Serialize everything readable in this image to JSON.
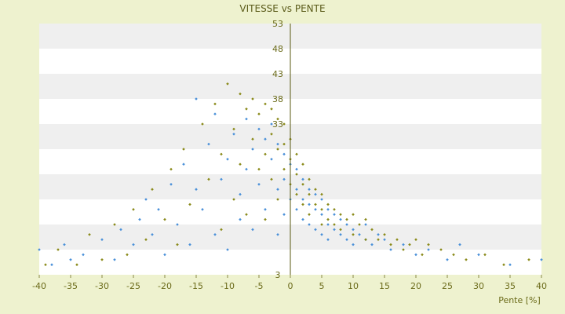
{
  "chart_data": {
    "type": "scatter",
    "title": "VITESSE vs PENTE",
    "xlabel": "Pente [%]",
    "ylabel": "",
    "xlim": [
      -40,
      40
    ],
    "ylim": [
      3,
      53
    ],
    "x_ticks": [
      -40,
      -35,
      -30,
      -25,
      -20,
      -15,
      -10,
      -5,
      0,
      5,
      10,
      15,
      20,
      25,
      30,
      35,
      40
    ],
    "y_ticks": [
      3,
      8,
      13,
      18,
      23,
      28,
      33,
      38,
      43,
      48,
      53
    ],
    "y_tick_labels": [
      "3",
      "",
      "",
      "",
      "",
      "",
      "33",
      "38",
      "43",
      "48",
      "53"
    ],
    "grid": "alternating horizontal bands",
    "background_colors": {
      "page": "#eef2cf",
      "band_white": "#ffffff",
      "band_grey": "#efefef"
    },
    "series": [
      {
        "color": "#4a90d9",
        "marker": "small diamond",
        "points": [
          [
            -40,
            8
          ],
          [
            -38,
            5
          ],
          [
            -36,
            9
          ],
          [
            -35,
            6
          ],
          [
            -33,
            7
          ],
          [
            -30,
            10
          ],
          [
            -28,
            6
          ],
          [
            -27,
            12
          ],
          [
            -25,
            9
          ],
          [
            -24,
            14
          ],
          [
            -23,
            18
          ],
          [
            -22,
            11
          ],
          [
            -21,
            16
          ],
          [
            -20,
            7
          ],
          [
            -19,
            21
          ],
          [
            -18,
            13
          ],
          [
            -17,
            25
          ],
          [
            -16,
            9
          ],
          [
            -15,
            38
          ],
          [
            -15,
            20
          ],
          [
            -14,
            16
          ],
          [
            -13,
            29
          ],
          [
            -12,
            11
          ],
          [
            -12,
            35
          ],
          [
            -11,
            22
          ],
          [
            -10,
            26
          ],
          [
            -10,
            8
          ],
          [
            -9,
            31
          ],
          [
            -8,
            19
          ],
          [
            -8,
            14
          ],
          [
            -7,
            34
          ],
          [
            -7,
            24
          ],
          [
            -6,
            28
          ],
          [
            -6,
            12
          ],
          [
            -5,
            32
          ],
          [
            -5,
            21
          ],
          [
            -4,
            30
          ],
          [
            -4,
            16
          ],
          [
            -3,
            33
          ],
          [
            -3,
            26
          ],
          [
            -2,
            29
          ],
          [
            -2,
            20
          ],
          [
            -2,
            11
          ],
          [
            -1,
            27
          ],
          [
            -1,
            22
          ],
          [
            -1,
            15
          ],
          [
            0,
            25
          ],
          [
            0,
            18
          ],
          [
            1,
            24
          ],
          [
            1,
            20
          ],
          [
            1,
            16
          ],
          [
            2,
            22
          ],
          [
            2,
            18
          ],
          [
            2,
            14
          ],
          [
            3,
            20
          ],
          [
            3,
            17
          ],
          [
            3,
            13
          ],
          [
            4,
            19
          ],
          [
            4,
            16
          ],
          [
            4,
            12
          ],
          [
            5,
            18
          ],
          [
            5,
            15
          ],
          [
            5,
            11
          ],
          [
            6,
            16
          ],
          [
            6,
            13
          ],
          [
            6,
            10
          ],
          [
            7,
            15
          ],
          [
            7,
            12
          ],
          [
            8,
            14
          ],
          [
            8,
            11
          ],
          [
            9,
            13
          ],
          [
            9,
            10
          ],
          [
            10,
            12
          ],
          [
            10,
            9
          ],
          [
            11,
            11
          ],
          [
            12,
            10
          ],
          [
            12,
            13
          ],
          [
            13,
            9
          ],
          [
            14,
            11
          ],
          [
            15,
            10
          ],
          [
            16,
            8
          ],
          [
            18,
            9
          ],
          [
            20,
            7
          ],
          [
            22,
            8
          ],
          [
            25,
            6
          ],
          [
            27,
            9
          ],
          [
            30,
            7
          ],
          [
            35,
            5
          ],
          [
            40,
            6
          ]
        ]
      },
      {
        "color": "#8a8a1a",
        "marker": "small diamond",
        "points": [
          [
            -39,
            5
          ],
          [
            -37,
            8
          ],
          [
            -34,
            5
          ],
          [
            -32,
            11
          ],
          [
            -30,
            6
          ],
          [
            -28,
            13
          ],
          [
            -26,
            7
          ],
          [
            -25,
            16
          ],
          [
            -23,
            10
          ],
          [
            -22,
            20
          ],
          [
            -20,
            14
          ],
          [
            -19,
            24
          ],
          [
            -18,
            9
          ],
          [
            -17,
            28
          ],
          [
            -16,
            17
          ],
          [
            -14,
            33
          ],
          [
            -13,
            22
          ],
          [
            -12,
            37
          ],
          [
            -11,
            27
          ],
          [
            -11,
            12
          ],
          [
            -10,
            41
          ],
          [
            -9,
            32
          ],
          [
            -9,
            18
          ],
          [
            -8,
            39
          ],
          [
            -8,
            25
          ],
          [
            -7,
            36
          ],
          [
            -7,
            15
          ],
          [
            -6,
            38
          ],
          [
            -6,
            30
          ],
          [
            -5,
            35
          ],
          [
            -5,
            24
          ],
          [
            -4,
            37
          ],
          [
            -4,
            27
          ],
          [
            -4,
            14
          ],
          [
            -3,
            36
          ],
          [
            -3,
            31
          ],
          [
            -3,
            22
          ],
          [
            -2,
            34
          ],
          [
            -2,
            28
          ],
          [
            -2,
            18
          ],
          [
            -1,
            33
          ],
          [
            -1,
            29
          ],
          [
            -1,
            24
          ],
          [
            0,
            30
          ],
          [
            0,
            26
          ],
          [
            0,
            21
          ],
          [
            1,
            27
          ],
          [
            1,
            23
          ],
          [
            1,
            19
          ],
          [
            2,
            25
          ],
          [
            2,
            21
          ],
          [
            2,
            17
          ],
          [
            3,
            22
          ],
          [
            3,
            19
          ],
          [
            3,
            15
          ],
          [
            4,
            20
          ],
          [
            4,
            17
          ],
          [
            5,
            19
          ],
          [
            5,
            16
          ],
          [
            5,
            13
          ],
          [
            6,
            17
          ],
          [
            6,
            14
          ],
          [
            7,
            16
          ],
          [
            7,
            13
          ],
          [
            8,
            15
          ],
          [
            8,
            12
          ],
          [
            9,
            14
          ],
          [
            10,
            15
          ],
          [
            10,
            11
          ],
          [
            11,
            13
          ],
          [
            12,
            14
          ],
          [
            12,
            10
          ],
          [
            13,
            12
          ],
          [
            14,
            10
          ],
          [
            15,
            11
          ],
          [
            16,
            9
          ],
          [
            17,
            10
          ],
          [
            18,
            8
          ],
          [
            19,
            9
          ],
          [
            20,
            10
          ],
          [
            21,
            7
          ],
          [
            22,
            9
          ],
          [
            24,
            8
          ],
          [
            26,
            7
          ],
          [
            28,
            6
          ],
          [
            31,
            7
          ],
          [
            34,
            5
          ],
          [
            38,
            6
          ]
        ]
      }
    ]
  }
}
